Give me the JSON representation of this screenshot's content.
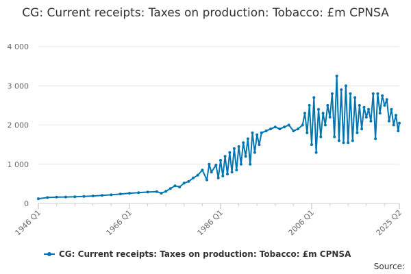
{
  "chart_data": {
    "type": "line",
    "title": "CG: Current receipts: Taxes on production: Tobacco: £m CPNSA",
    "xlabel": "",
    "ylabel": "",
    "x_ticks": [
      "1946 Q1",
      "1966 Q1",
      "1986 Q1",
      "2006 Q1",
      "2025 Q2"
    ],
    "y_ticks": [
      "0",
      "1 000",
      "2 000",
      "3 000",
      "4 000"
    ],
    "ylim": [
      0,
      4000
    ],
    "x_range_quarters": [
      "1946 Q1",
      "2025 Q2"
    ],
    "grid": "horizontal",
    "legend_position": "bottom",
    "color": "#0075b0",
    "series": [
      {
        "name": "CG: Current receipts: Taxes on production: Tobacco: £m CPNSA",
        "points": [
          [
            "1946 Q1",
            120
          ],
          [
            "1948 Q1",
            150
          ],
          [
            "1950 Q1",
            160
          ],
          [
            "1952 Q1",
            165
          ],
          [
            "1954 Q1",
            170
          ],
          [
            "1956 Q1",
            180
          ],
          [
            "1958 Q1",
            190
          ],
          [
            "1960 Q1",
            205
          ],
          [
            "1962 Q1",
            220
          ],
          [
            "1964 Q1",
            240
          ],
          [
            "1966 Q1",
            260
          ],
          [
            "1968 Q1",
            275
          ],
          [
            "1970 Q1",
            290
          ],
          [
            "1972 Q1",
            300
          ],
          [
            "1973 Q1",
            260
          ],
          [
            "1974 Q1",
            310
          ],
          [
            "1975 Q1",
            380
          ],
          [
            "1976 Q1",
            450
          ],
          [
            "1977 Q1",
            420
          ],
          [
            "1978 Q1",
            520
          ],
          [
            "1979 Q1",
            560
          ],
          [
            "1980 Q1",
            650
          ],
          [
            "1981 Q1",
            720
          ],
          [
            "1982 Q1",
            850
          ],
          [
            "1983 Q1",
            600
          ],
          [
            "1983 Q3",
            1000
          ],
          [
            "1984 Q1",
            800
          ],
          [
            "1985 Q1",
            980
          ],
          [
            "1985 Q3",
            650
          ],
          [
            "1986 Q1",
            1100
          ],
          [
            "1986 Q3",
            700
          ],
          [
            "1987 Q1",
            1200
          ],
          [
            "1987 Q3",
            750
          ],
          [
            "1988 Q1",
            1300
          ],
          [
            "1988 Q3",
            800
          ],
          [
            "1989 Q1",
            1400
          ],
          [
            "1989 Q3",
            850
          ],
          [
            "1990 Q1",
            1450
          ],
          [
            "1990 Q3",
            1000
          ],
          [
            "1991 Q1",
            1550
          ],
          [
            "1991 Q3",
            1200
          ],
          [
            "1992 Q1",
            1650
          ],
          [
            "1992 Q3",
            1000
          ],
          [
            "1993 Q1",
            1800
          ],
          [
            "1993 Q3",
            1300
          ],
          [
            "1994 Q1",
            1750
          ],
          [
            "1994 Q3",
            1500
          ],
          [
            "1995 Q1",
            1800
          ],
          [
            "1996 Q1",
            1850
          ],
          [
            "1997 Q1",
            1900
          ],
          [
            "1998 Q1",
            1950
          ],
          [
            "1999 Q1",
            1900
          ],
          [
            "2000 Q1",
            1950
          ],
          [
            "2001 Q1",
            2000
          ],
          [
            "2002 Q1",
            1850
          ],
          [
            "2003 Q1",
            1900
          ],
          [
            "2004 Q1",
            2000
          ],
          [
            "2004 Q3",
            2300
          ],
          [
            "2005 Q1",
            1800
          ],
          [
            "2005 Q3",
            2500
          ],
          [
            "2006 Q1",
            1500
          ],
          [
            "2006 Q3",
            2700
          ],
          [
            "2007 Q1",
            1300
          ],
          [
            "2007 Q3",
            2400
          ],
          [
            "2008 Q1",
            1700
          ],
          [
            "2008 Q3",
            2300
          ],
          [
            "2009 Q1",
            2000
          ],
          [
            "2009 Q3",
            2500
          ],
          [
            "2010 Q1",
            2200
          ],
          [
            "2010 Q3",
            2800
          ],
          [
            "2011 Q1",
            1700
          ],
          [
            "2011 Q3",
            3250
          ],
          [
            "2012 Q1",
            1600
          ],
          [
            "2012 Q3",
            2900
          ],
          [
            "2013 Q1",
            1550
          ],
          [
            "2013 Q3",
            3000
          ],
          [
            "2014 Q1",
            1550
          ],
          [
            "2014 Q3",
            2800
          ],
          [
            "2015 Q1",
            1600
          ],
          [
            "2015 Q3",
            2700
          ],
          [
            "2016 Q1",
            1800
          ],
          [
            "2016 Q3",
            2500
          ],
          [
            "2017 Q1",
            1900
          ],
          [
            "2017 Q3",
            2450
          ],
          [
            "2018 Q1",
            2200
          ],
          [
            "2018 Q3",
            2400
          ],
          [
            "2019 Q1",
            2100
          ],
          [
            "2019 Q3",
            2800
          ],
          [
            "2020 Q1",
            1650
          ],
          [
            "2020 Q3",
            2800
          ],
          [
            "2021 Q1",
            2300
          ],
          [
            "2021 Q3",
            2750
          ],
          [
            "2022 Q1",
            2500
          ],
          [
            "2022 Q3",
            2650
          ],
          [
            "2023 Q1",
            2100
          ],
          [
            "2023 Q3",
            2400
          ],
          [
            "2024 Q1",
            2000
          ],
          [
            "2024 Q3",
            2250
          ],
          [
            "2025 Q1",
            1850
          ],
          [
            "2025 Q2",
            2050
          ]
        ]
      }
    ]
  },
  "legend": {
    "label": "CG: Current receipts: Taxes on production: Tobacco: £m CPNSA"
  },
  "footer": {
    "source_label": "Source:"
  }
}
